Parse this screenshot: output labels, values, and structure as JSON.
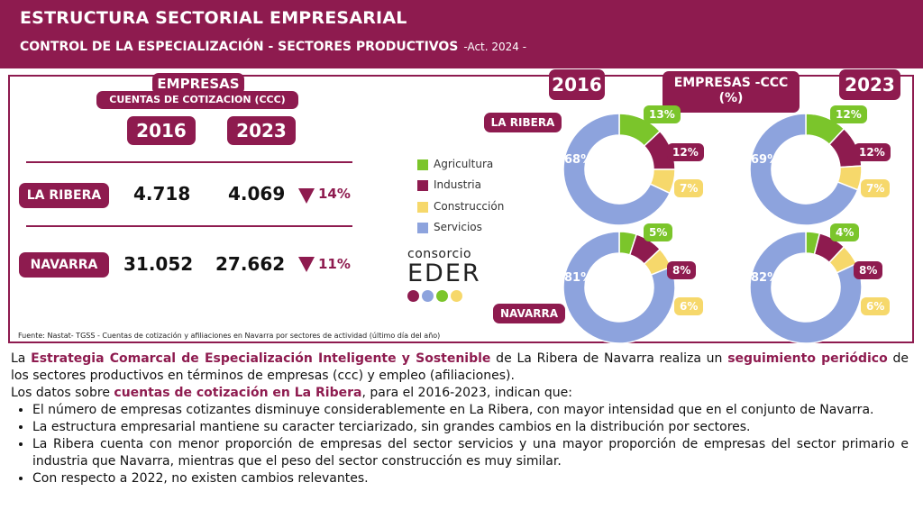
{
  "header": {
    "title": "ESTRUCTURA SECTORIAL EMPRESARIAL",
    "subtitle": "CONTROL DE LA ESPECIALIZACIÓN - SECTORES PRODUCTIVOS",
    "subtitle_act": "-Act. 2024 -"
  },
  "left_table": {
    "heading": "EMPRESAS",
    "subheading": "CUENTAS DE COTIZACION (CCC)",
    "year_2016": "2016",
    "year_2023": "2023",
    "rows": [
      {
        "label": "LA RIBERA",
        "v2016": "4.718",
        "v2023": "4.069",
        "change": "14%"
      },
      {
        "label": "NAVARRA",
        "v2016": "31.052",
        "v2023": "27.662",
        "change": "11%"
      }
    ]
  },
  "legend": {
    "items": [
      {
        "label": "Agricultura",
        "color": "#7bc52b"
      },
      {
        "label": "Industria",
        "color": "#8e1b4f"
      },
      {
        "label": "Construcción",
        "color": "#f6d86b"
      },
      {
        "label": "Servicios",
        "color": "#8da3dd"
      }
    ]
  },
  "logo": {
    "line1": "consorcio",
    "line2": "EDER"
  },
  "charts_header": {
    "year_left": "2016",
    "year_right": "2023",
    "title": "EMPRESAS -CCC (%)",
    "row_label_top": "LA RIBERA",
    "row_label_bottom": "NAVARRA"
  },
  "chart_data": [
    {
      "type": "pie",
      "title": "",
      "region": "LA RIBERA",
      "year": "2016",
      "categories": [
        "Agricultura",
        "Industria",
        "Construcción",
        "Servicios"
      ],
      "values": [
        13,
        12,
        7,
        68
      ],
      "labels": [
        "13%",
        "12%",
        "7%",
        "68%"
      ]
    },
    {
      "type": "pie",
      "title": "",
      "region": "LA RIBERA",
      "year": "2023",
      "categories": [
        "Agricultura",
        "Industria",
        "Construcción",
        "Servicios"
      ],
      "values": [
        12,
        12,
        7,
        69
      ],
      "labels": [
        "12%",
        "12%",
        "7%",
        "69%"
      ]
    },
    {
      "type": "pie",
      "title": "",
      "region": "NAVARRA",
      "year": "2016",
      "categories": [
        "Agricultura",
        "Industria",
        "Construcción",
        "Servicios"
      ],
      "values": [
        5,
        8,
        6,
        81
      ],
      "labels": [
        "5%",
        "8%",
        "6%",
        "81%"
      ]
    },
    {
      "type": "pie",
      "title": "",
      "region": "NAVARRA",
      "year": "2023",
      "categories": [
        "Agricultura",
        "Industria",
        "Construcción",
        "Servicios"
      ],
      "values": [
        4,
        8,
        6,
        82
      ],
      "labels": [
        "4%",
        "8%",
        "6%",
        "82%"
      ]
    }
  ],
  "source": "Fuente: Nastat- TGSS - Cuentas de cotización y afiliaciones en Navarra  por sectores de actividad (último día del año)",
  "body": {
    "p1_a": "La ",
    "p1_hl1": "Estrategia Comarcal de Especialización Inteligente y Sostenible",
    "p1_b": " de La Ribera de Navarra realiza un ",
    "p1_hl2": "seguimiento periódico",
    "p1_c": " de los sectores productivos en términos de empresas (ccc) y empleo (afiliaciones).",
    "p2_a": "Los datos sobre ",
    "p2_hl": "cuentas de cotización en La Ribera",
    "p2_b": ", para el 2016-2023, indican que:",
    "bullets": [
      "El número de empresas cotizantes disminuye considerablemente en La Ribera, con mayor intensidad que en el conjunto de Navarra.",
      "La estructura empresarial mantiene su caracter terciarizado, sin grandes cambios en la distribución por sectores.",
      "La Ribera cuenta con menor proporción de empresas del sector servicios y una mayor proporción de empresas del sector primario e industria que Navarra, mientras que el peso del sector construcción es muy similar.",
      "Con respecto a 2022, no existen cambios relevantes."
    ]
  }
}
